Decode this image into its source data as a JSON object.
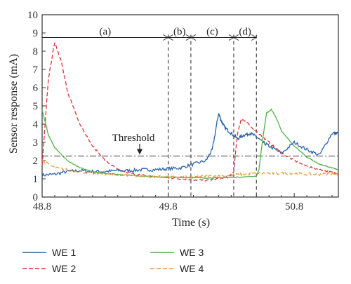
{
  "chart_data": {
    "type": "line",
    "xlabel": "Time (s)",
    "ylabel": "Sensor response (mA)",
    "xlim": [
      48.8,
      51.15
    ],
    "ylim": [
      0,
      10
    ],
    "xticks": [
      "48.8",
      "49.8",
      "50.8"
    ],
    "xtick_values": [
      48.8,
      49.8,
      50.8
    ],
    "yticks": [
      "0",
      "1",
      "2",
      "3",
      "4",
      "5",
      "6",
      "7",
      "8",
      "9",
      "10"
    ],
    "grid": false,
    "threshold": {
      "label": "Threshold",
      "value": 2.25
    },
    "regions": [
      {
        "label": "(a)",
        "start": 48.8,
        "end": 49.8
      },
      {
        "label": "(b)",
        "start": 49.8,
        "end": 49.98
      },
      {
        "label": "(c)",
        "start": 49.98,
        "end": 50.32
      },
      {
        "label": "(d)",
        "start": 50.32,
        "end": 50.5
      }
    ],
    "phase_lines": [
      49.8,
      49.98,
      50.32,
      50.5
    ],
    "legend_position": "bottom",
    "series": [
      {
        "name": "WE 1",
        "color": "#2a62a8",
        "dash": "solid",
        "points": [
          [
            48.8,
            1.2
          ],
          [
            48.9,
            1.25
          ],
          [
            49.0,
            1.4
          ],
          [
            49.1,
            1.45
          ],
          [
            49.2,
            1.4
          ],
          [
            49.3,
            1.4
          ],
          [
            49.4,
            1.45
          ],
          [
            49.5,
            1.45
          ],
          [
            49.6,
            1.5
          ],
          [
            49.7,
            1.5
          ],
          [
            49.8,
            1.55
          ],
          [
            49.9,
            1.6
          ],
          [
            50.0,
            1.8
          ],
          [
            50.1,
            2.0
          ],
          [
            50.15,
            2.6
          ],
          [
            50.2,
            4.6
          ],
          [
            50.22,
            4.2
          ],
          [
            50.25,
            3.8
          ],
          [
            50.3,
            3.5
          ],
          [
            50.35,
            3.2
          ],
          [
            50.4,
            3.4
          ],
          [
            50.45,
            3.5
          ],
          [
            50.5,
            3.3
          ],
          [
            50.55,
            3.0
          ],
          [
            50.6,
            2.8
          ],
          [
            50.7,
            2.4
          ],
          [
            50.8,
            3.0
          ],
          [
            50.9,
            2.6
          ],
          [
            51.0,
            2.3
          ],
          [
            51.1,
            3.5
          ],
          [
            51.15,
            3.5
          ]
        ]
      },
      {
        "name": "WE 2",
        "color": "#d9343a",
        "dash": "dashed",
        "points": [
          [
            48.8,
            1.7
          ],
          [
            48.85,
            6.5
          ],
          [
            48.9,
            8.5
          ],
          [
            48.95,
            7.5
          ],
          [
            49.0,
            5.8
          ],
          [
            49.1,
            4.0
          ],
          [
            49.2,
            2.8
          ],
          [
            49.3,
            2.0
          ],
          [
            49.4,
            1.5
          ],
          [
            49.5,
            1.3
          ],
          [
            49.6,
            1.2
          ],
          [
            49.7,
            1.1
          ],
          [
            49.8,
            1.05
          ],
          [
            49.9,
            1.0
          ],
          [
            50.0,
            0.95
          ],
          [
            50.1,
            0.9
          ],
          [
            50.2,
            1.0
          ],
          [
            50.28,
            1.1
          ],
          [
            50.32,
            1.4
          ],
          [
            50.35,
            3.5
          ],
          [
            50.38,
            4.3
          ],
          [
            50.42,
            4.1
          ],
          [
            50.5,
            3.6
          ],
          [
            50.6,
            3.0
          ],
          [
            50.7,
            2.4
          ],
          [
            50.8,
            2.0
          ],
          [
            50.9,
            1.7
          ],
          [
            51.0,
            1.5
          ],
          [
            51.1,
            1.35
          ],
          [
            51.15,
            1.3
          ]
        ]
      },
      {
        "name": "WE 3",
        "color": "#4fb348",
        "dash": "solid",
        "points": [
          [
            48.8,
            4.8
          ],
          [
            48.85,
            3.4
          ],
          [
            48.9,
            2.7
          ],
          [
            49.0,
            2.0
          ],
          [
            49.1,
            1.6
          ],
          [
            49.2,
            1.4
          ],
          [
            49.3,
            1.3
          ],
          [
            49.4,
            1.25
          ],
          [
            49.5,
            1.2
          ],
          [
            49.6,
            1.15
          ],
          [
            49.7,
            1.1
          ],
          [
            49.8,
            1.1
          ],
          [
            49.9,
            1.08
          ],
          [
            50.0,
            1.06
          ],
          [
            50.1,
            1.05
          ],
          [
            50.2,
            1.05
          ],
          [
            50.3,
            1.08
          ],
          [
            50.4,
            1.1
          ],
          [
            50.5,
            1.15
          ],
          [
            50.52,
            1.5
          ],
          [
            50.55,
            3.2
          ],
          [
            50.58,
            4.6
          ],
          [
            50.62,
            4.8
          ],
          [
            50.66,
            4.3
          ],
          [
            50.7,
            3.6
          ],
          [
            50.8,
            2.8
          ],
          [
            50.9,
            2.2
          ],
          [
            51.0,
            1.8
          ],
          [
            51.1,
            1.6
          ],
          [
            51.15,
            1.5
          ]
        ]
      },
      {
        "name": "WE 4",
        "color": "#e89a3c",
        "dash": "dashed",
        "points": [
          [
            48.8,
            2.0
          ],
          [
            48.9,
            1.6
          ],
          [
            49.0,
            1.5
          ],
          [
            49.1,
            1.4
          ],
          [
            49.2,
            1.3
          ],
          [
            49.3,
            1.25
          ],
          [
            49.4,
            1.2
          ],
          [
            49.5,
            1.2
          ],
          [
            49.6,
            1.15
          ],
          [
            49.7,
            1.12
          ],
          [
            49.8,
            1.1
          ],
          [
            49.9,
            1.1
          ],
          [
            50.0,
            1.1
          ],
          [
            50.1,
            1.15
          ],
          [
            50.2,
            1.15
          ],
          [
            50.3,
            1.2
          ],
          [
            50.4,
            1.25
          ],
          [
            50.5,
            1.3
          ],
          [
            50.6,
            1.3
          ],
          [
            50.7,
            1.3
          ],
          [
            50.8,
            1.3
          ],
          [
            50.9,
            1.25
          ],
          [
            51.0,
            1.25
          ],
          [
            51.1,
            1.3
          ],
          [
            51.15,
            1.3
          ]
        ]
      }
    ]
  }
}
